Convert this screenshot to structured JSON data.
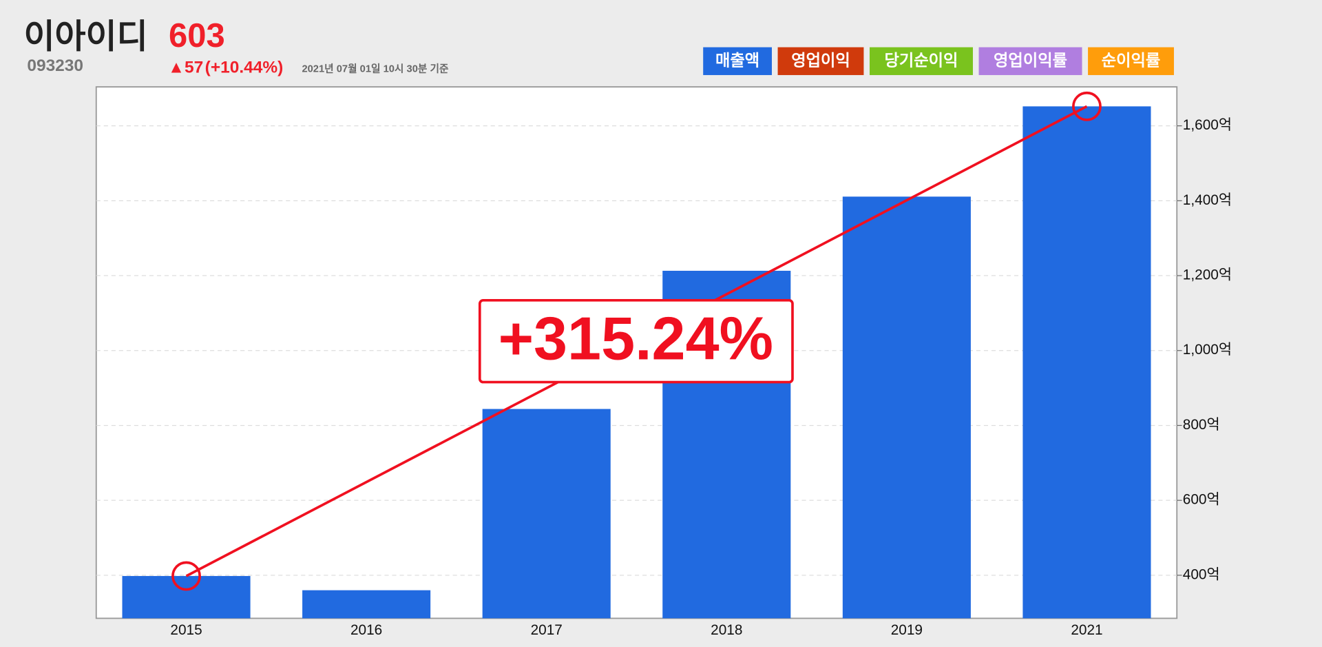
{
  "header": {
    "name": "이아이디",
    "price": "603",
    "code": "093230",
    "change": "▲57",
    "change_pct": "(+10.44%)",
    "timestamp": "2021년 07월 01일 10시 30분 기준"
  },
  "chart_data": {
    "type": "bar",
    "categories": [
      "2015",
      "2016",
      "2017",
      "2018",
      "2019",
      "2021"
    ],
    "series": [
      {
        "name": "매출액",
        "color": "#216ae0",
        "values": [
          398,
          360,
          844,
          1213,
          1411,
          1652
        ]
      },
      {
        "name": "영업이익",
        "color": "#d03a0c",
        "values": [
          null,
          null,
          null,
          null,
          null,
          null
        ]
      },
      {
        "name": "당기순이익",
        "color": "#7ac31e",
        "values": [
          null,
          null,
          null,
          null,
          null,
          null
        ]
      },
      {
        "name": "영업이익률",
        "color": "#b07ee0",
        "values": [
          null,
          null,
          null,
          null,
          null,
          null
        ]
      },
      {
        "name": "순이익률",
        "color": "#ff9d0b",
        "values": [
          null,
          null,
          null,
          null,
          null,
          null
        ]
      }
    ],
    "ylim": [
      285,
      1704
    ],
    "yticks": [
      {
        "value": 400,
        "label": "400억"
      },
      {
        "value": 600,
        "label": "600억"
      },
      {
        "value": 800,
        "label": "800억"
      },
      {
        "value": 1000,
        "label": "1,000억"
      },
      {
        "value": 1200,
        "label": "1,200억"
      },
      {
        "value": 1400,
        "label": "1,400억"
      },
      {
        "value": 1600,
        "label": "1,600억"
      }
    ],
    "grid": true,
    "annotation": "+315.24%",
    "annotation_color": "#f01020"
  }
}
